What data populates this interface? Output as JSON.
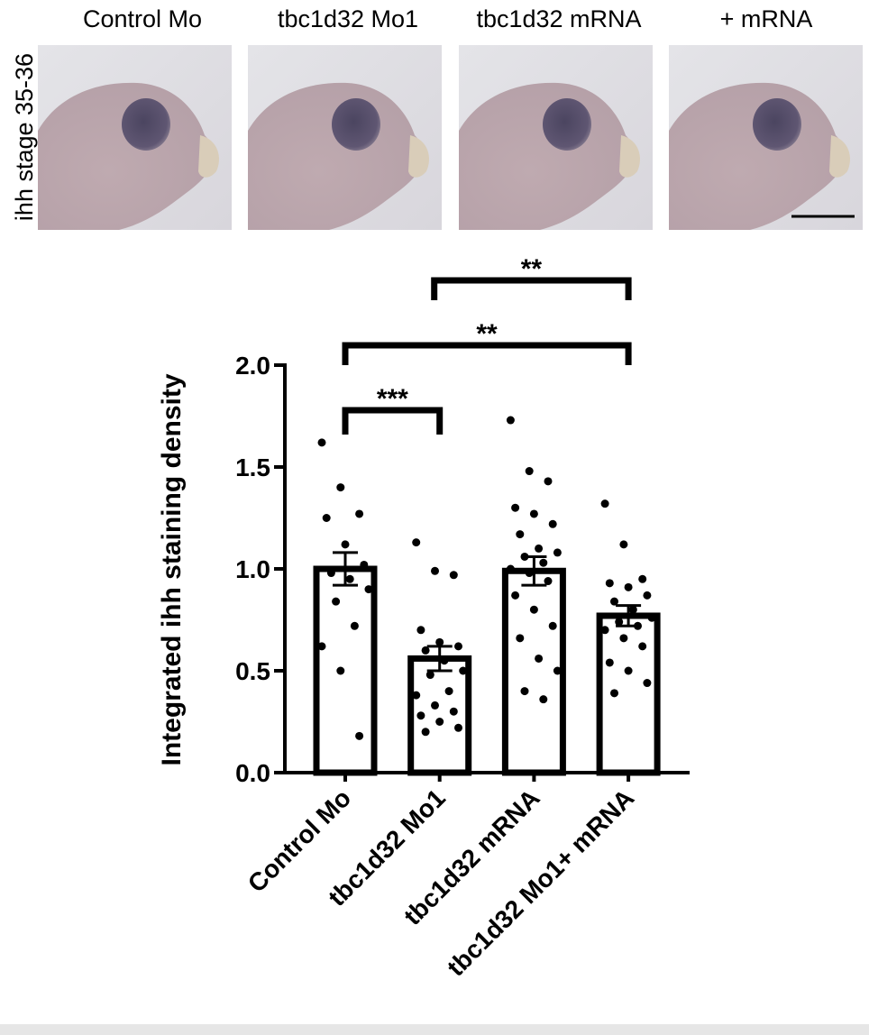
{
  "figure": {
    "row_label": "ihh stage 35-36",
    "photo_labels": [
      "Control Mo",
      "tbc1d32 Mo1",
      "tbc1d32  mRNA",
      "+ mRNA"
    ]
  },
  "chart_data": {
    "type": "bar",
    "y_label": "Integrated ihh staining density",
    "categories": [
      "Control Mo",
      "tbc1d32 Mo1",
      "tbc1d32 mRNA",
      "tbc1d32 Mo1+ mRNA"
    ],
    "values": [
      1.0,
      0.56,
      0.99,
      0.77
    ],
    "errors": [
      0.08,
      0.06,
      0.07,
      0.05
    ],
    "points": [
      [
        1.62,
        1.4,
        1.27,
        1.25,
        1.12,
        1.02,
        0.98,
        0.95,
        0.9,
        0.84,
        0.72,
        0.62,
        0.5,
        0.18
      ],
      [
        1.13,
        0.99,
        0.97,
        0.7,
        0.64,
        0.62,
        0.6,
        0.55,
        0.5,
        0.48,
        0.4,
        0.38,
        0.33,
        0.3,
        0.28,
        0.25,
        0.22,
        0.2
      ],
      [
        1.73,
        1.48,
        1.43,
        1.3,
        1.27,
        1.22,
        1.17,
        1.1,
        1.08,
        1.06,
        1.03,
        1.0,
        0.98,
        0.94,
        0.87,
        0.8,
        0.72,
        0.66,
        0.56,
        0.5,
        0.4,
        0.36
      ],
      [
        1.32,
        1.12,
        0.95,
        0.93,
        0.91,
        0.87,
        0.84,
        0.8,
        0.76,
        0.74,
        0.72,
        0.7,
        0.66,
        0.62,
        0.54,
        0.5,
        0.44,
        0.39
      ]
    ],
    "color": "#ffffff",
    "ylim": [
      0,
      2.0
    ],
    "yticks": [
      {
        "value": 0,
        "label": "0.0"
      },
      0.5,
      {
        "value": 1,
        "label": "1.0"
      },
      1.5,
      {
        "value": 2,
        "label": "2.0"
      }
    ],
    "significance": [
      {
        "from": 0,
        "to": 1,
        "label": "***"
      },
      {
        "from": 0,
        "to": 3,
        "label": "**"
      },
      {
        "from": 1,
        "to": 3,
        "label": "**"
      }
    ]
  }
}
